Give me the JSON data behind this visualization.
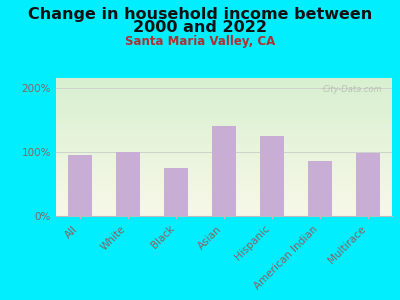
{
  "title_line1": "Change in household income between",
  "title_line2": "2000 and 2022",
  "subtitle": "Santa Maria Valley, CA",
  "categories": [
    "All",
    "White",
    "Black",
    "Asian",
    "Hispanic",
    "American Indian",
    "Multirace"
  ],
  "values": [
    95,
    100,
    75,
    140,
    125,
    85,
    98
  ],
  "bar_color": "#c8aed4",
  "background_outer": "#00eeff",
  "background_inner_top": "#d8f0d0",
  "background_inner_bottom": "#f8f8e8",
  "title_color": "#111111",
  "subtitle_color": "#b03030",
  "tick_label_color": "#8b6060",
  "ytick_labels": [
    "0%",
    "100%",
    "200%"
  ],
  "ytick_values": [
    0,
    100,
    200
  ],
  "ylim": [
    0,
    215
  ],
  "watermark": "City-Data.com",
  "title_fontsize": 11.5,
  "subtitle_fontsize": 8.5,
  "tick_fontsize": 7.5
}
